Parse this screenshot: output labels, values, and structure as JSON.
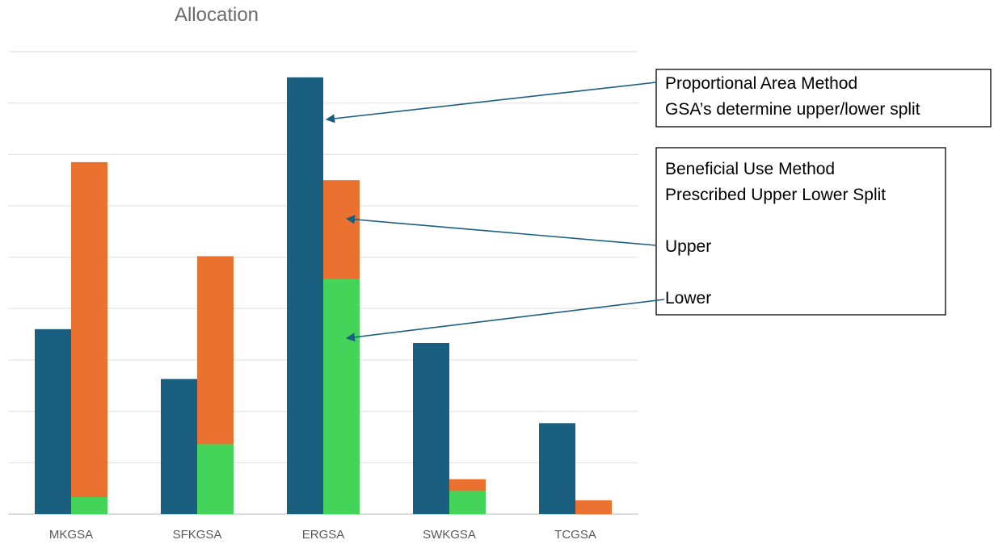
{
  "chart_data": {
    "type": "bar",
    "title": "Allocation",
    "categories": [
      "MKGSA",
      "SFKGSA",
      "ERGSA",
      "SWKGSA",
      "TCGSA"
    ],
    "series": [
      {
        "values": [
          3.6,
          2.63,
          8.5,
          3.33,
          1.77
        ],
        "color": "#1a5f7f"
      },
      {
        "values": [
          6.85,
          5.02,
          6.5,
          0.68,
          0.27
        ],
        "color": "#ea7130"
      },
      {
        "values": [
          0.33,
          1.36,
          4.57,
          0.45,
          0
        ],
        "color": "#44d45a"
      }
    ],
    "ylim": [
      0,
      9
    ],
    "grid": true,
    "annotations": {
      "box1": [
        "Proportional Area Method",
        "GSA’s determine upper/lower split"
      ],
      "box2": [
        "Beneficial Use Method",
        "Prescribed Upper Lower Split",
        "Upper",
        "Lower"
      ]
    },
    "annotation_color": "#1a5f7f"
  }
}
